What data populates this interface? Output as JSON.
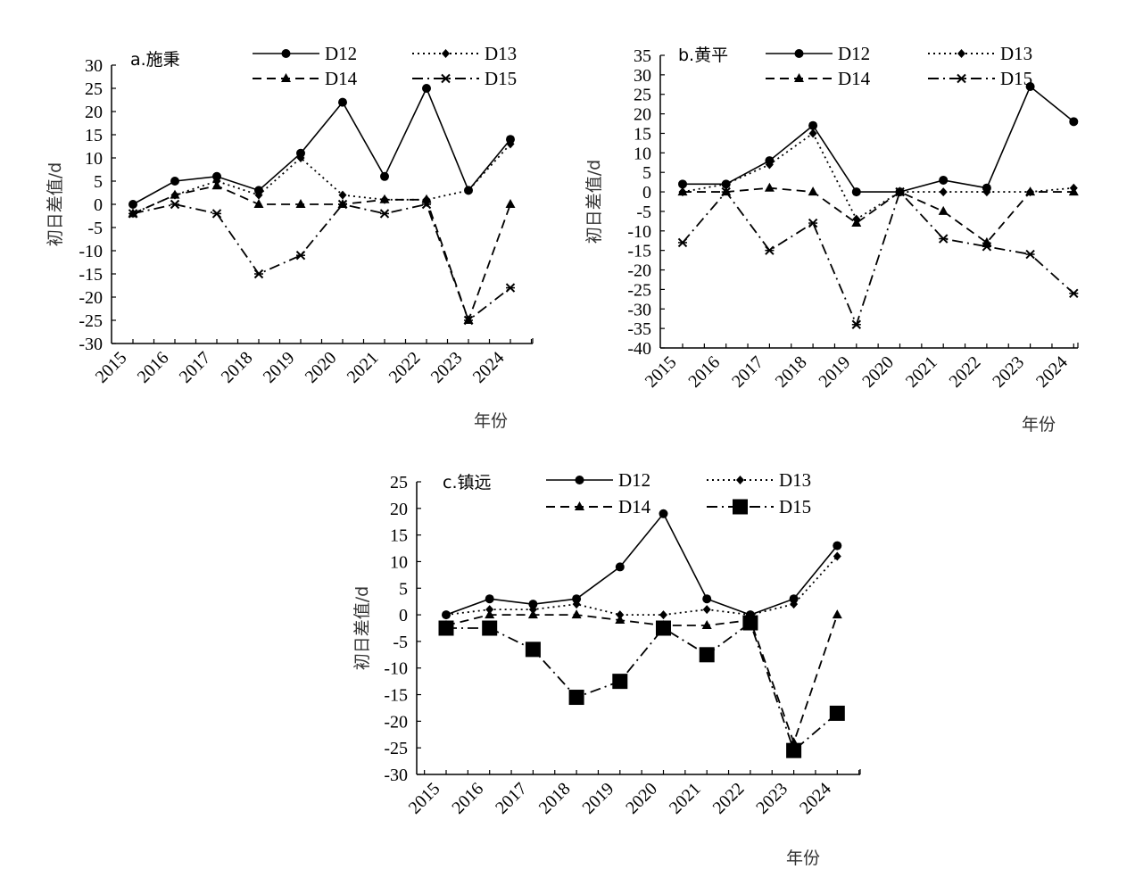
{
  "chart_data": [
    {
      "type": "line",
      "title": "a.施秉",
      "xlabel": "年份",
      "ylabel": "初日差值/d",
      "ylim": [
        -30,
        30
      ],
      "ytick_step": 5,
      "x": [
        "2015",
        "2016",
        "2017",
        "2018",
        "2019",
        "2020",
        "2021",
        "2022",
        "2023",
        "2024"
      ],
      "legend_position": "top",
      "series": [
        {
          "name": "D12",
          "marker": "circle",
          "line": "solid",
          "values": [
            0,
            5,
            6,
            3,
            11,
            22,
            6,
            25,
            3,
            14
          ]
        },
        {
          "name": "D13",
          "marker": "diamond",
          "line": "dotted",
          "values": [
            -2,
            2,
            5,
            2,
            10,
            2,
            1,
            1,
            3,
            13
          ]
        },
        {
          "name": "D14",
          "marker": "triangle",
          "line": "dashed",
          "values": [
            -2,
            2,
            4,
            0,
            0,
            0,
            1,
            1,
            -25,
            0
          ]
        },
        {
          "name": "D15",
          "marker": "asterisk",
          "line": "dashdot",
          "values": [
            -2,
            0,
            -2,
            -15,
            -11,
            0,
            -2,
            0,
            -25,
            -18
          ]
        }
      ]
    },
    {
      "type": "line",
      "title": "b.黄平",
      "xlabel": "年份",
      "ylabel": "初日差值/d",
      "ylim": [
        -40,
        35
      ],
      "ytick_step": 5,
      "x": [
        "2015",
        "2016",
        "2017",
        "2018",
        "2019",
        "2020",
        "2021",
        "2022",
        "2023",
        "2024"
      ],
      "legend_position": "top",
      "series": [
        {
          "name": "D12",
          "marker": "circle",
          "line": "solid",
          "values": [
            2,
            2,
            8,
            17,
            0,
            0,
            3,
            1,
            27,
            18
          ]
        },
        {
          "name": "D13",
          "marker": "diamond",
          "line": "dotted",
          "values": [
            0,
            2,
            7,
            15,
            -7,
            0,
            0,
            0,
            0,
            1
          ]
        },
        {
          "name": "D14",
          "marker": "triangle",
          "line": "dashed",
          "values": [
            0,
            0,
            1,
            0,
            -8,
            0,
            -5,
            -13,
            0,
            0
          ]
        },
        {
          "name": "D15",
          "marker": "asterisk",
          "line": "dashdot",
          "values": [
            -13,
            0,
            -15,
            -8,
            -34,
            0,
            -12,
            -14,
            -16,
            -26
          ]
        }
      ]
    },
    {
      "type": "line",
      "title": "c.镇远",
      "xlabel": "年份",
      "ylabel": "初日差值/d",
      "ylim": [
        -30,
        25
      ],
      "ytick_step": 5,
      "x": [
        "2015",
        "2016",
        "2017",
        "2018",
        "2019",
        "2020",
        "2021",
        "2022",
        "2023",
        "2024"
      ],
      "legend_position": "top",
      "series": [
        {
          "name": "D12",
          "marker": "circle",
          "line": "solid",
          "values": [
            0,
            3,
            2,
            3,
            9,
            19,
            3,
            0,
            3,
            13
          ]
        },
        {
          "name": "D13",
          "marker": "diamond",
          "line": "dotted",
          "values": [
            0,
            1,
            1,
            2,
            0,
            0,
            1,
            0,
            2,
            11
          ]
        },
        {
          "name": "D14",
          "marker": "triangle",
          "line": "dashed",
          "values": [
            -2,
            0,
            0,
            0,
            -1,
            -2,
            -2,
            -1,
            -24,
            0
          ]
        },
        {
          "name": "D15",
          "marker": "square",
          "line": "dashdot",
          "values": [
            -2.5,
            -2.5,
            -6.5,
            -15.5,
            -12.5,
            -2.5,
            -7.5,
            -1.5,
            -25.5,
            -18.5
          ]
        }
      ]
    }
  ]
}
